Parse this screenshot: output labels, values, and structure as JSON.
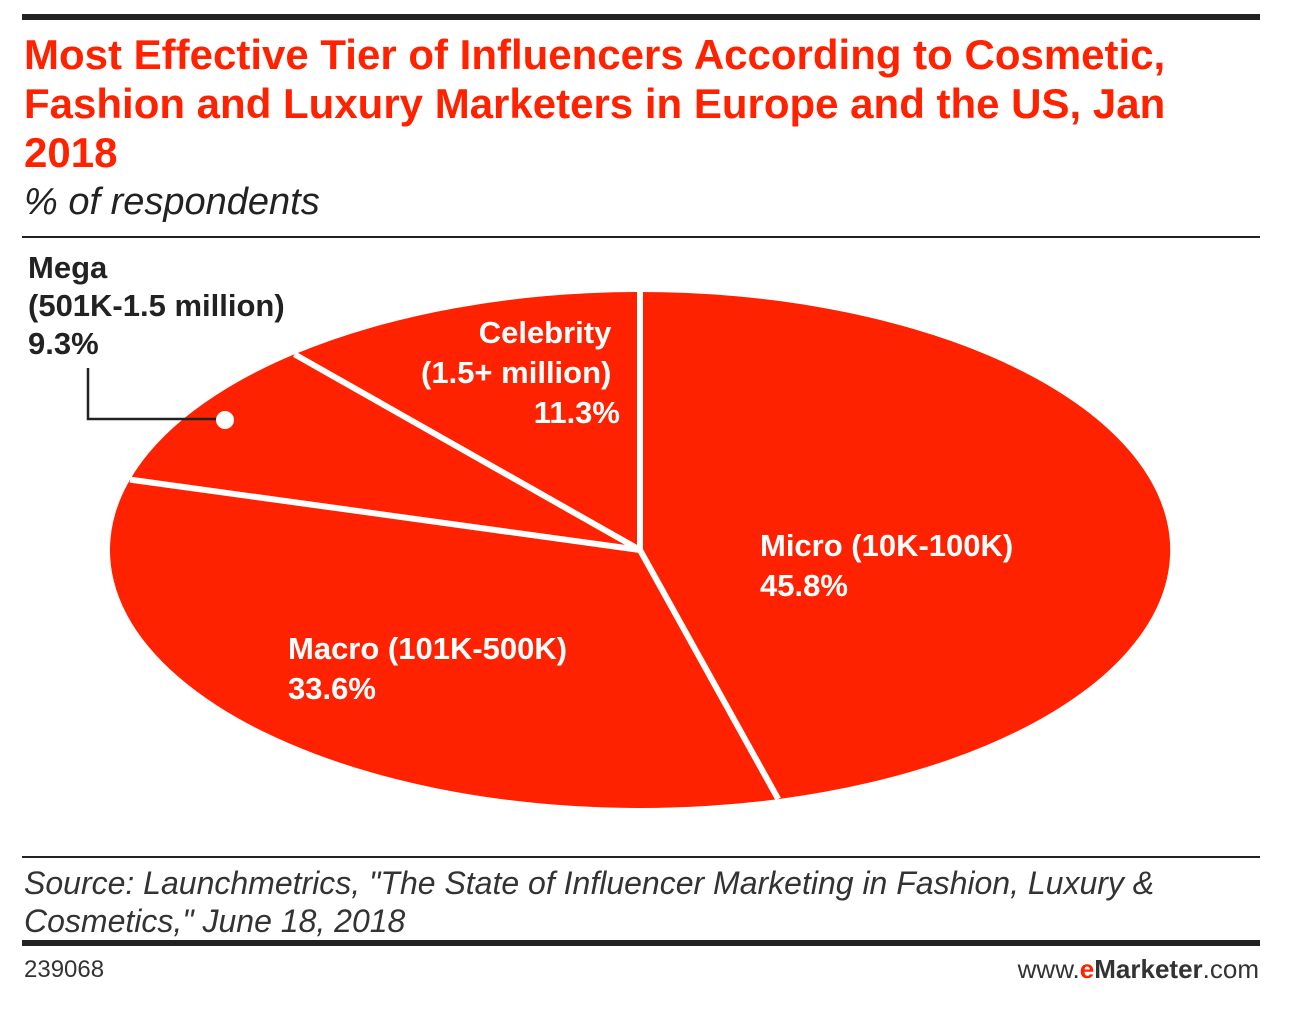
{
  "title": "Most Effective Tier of Influencers According to Cosmetic, Fashion and Luxury Marketers in Europe and the US, Jan 2018",
  "subtitle": "% of respondents",
  "source": "Source: Launchmetrics, \"The State of Influencer Marketing in Fashion, Luxury & Cosmetics,\" June 18, 2018",
  "chart_id": "239068",
  "brand": {
    "prefix": "www.",
    "e": "e",
    "name": "Marketer",
    "suffix": ".com"
  },
  "colors": {
    "accent": "#ff2200",
    "text": "#222222"
  },
  "chart_data": {
    "type": "pie",
    "title": "Most Effective Tier of Influencers According to Cosmetic, Fashion and Luxury Marketers in Europe and the US, Jan 2018",
    "unit": "% of respondents",
    "slices": [
      {
        "name": "Micro",
        "range": "(10K-100K)",
        "label": "Micro (10K-100K)",
        "value": 45.8,
        "value_label": "45.8%"
      },
      {
        "name": "Macro",
        "range": "(101K-500K)",
        "label": "Macro (101K-500K)",
        "value": 33.6,
        "value_label": "33.6%"
      },
      {
        "name": "Mega",
        "range": "(501K-1.5 million)",
        "label": "Mega",
        "value": 9.3,
        "value_label": "9.3%"
      },
      {
        "name": "Celebrity",
        "range": "(1.5+ million)",
        "label": "Celebrity",
        "value": 11.3,
        "value_label": "11.3%"
      }
    ]
  }
}
